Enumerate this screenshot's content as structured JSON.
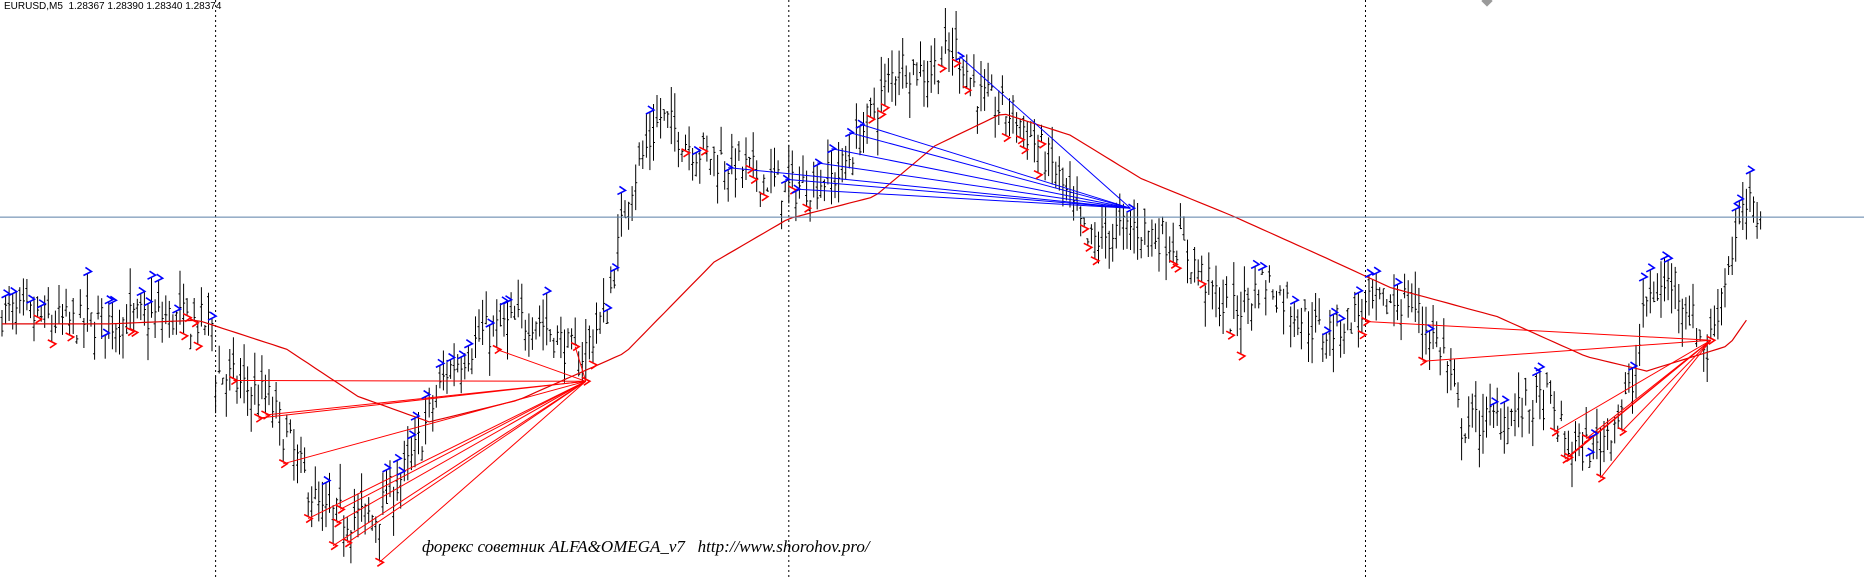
{
  "header": {
    "symbol": "EURUSD,M5",
    "prices": "1.28367 1.28390 1.28340 1.28374"
  },
  "watermark": "форекс советник ALFA&OMEGA_v7   http://www.shorohov.pro/",
  "colors": {
    "bars": "#000000",
    "moving_average": "#e00000",
    "buy": "#0000ff",
    "sell": "#ff0000",
    "price_line": "#5a7fa6",
    "separator": "#000000"
  },
  "chart_data": {
    "type": "ohlc",
    "symbol": "EURUSD",
    "timeframe": "M5",
    "last_bar": {
      "open": 1.28367,
      "high": 1.2839,
      "low": 1.2834,
      "close": 1.28374
    },
    "current_price": 1.28374,
    "bar_count": 520,
    "day_separators_at_bar": [
      60,
      221,
      383
    ],
    "y_range": [
      1.2738,
      1.2895
    ],
    "price_path": [
      [
        0,
        1.2811
      ],
      [
        20,
        1.2808
      ],
      [
        45,
        1.281
      ],
      [
        59,
        1.2808
      ],
      [
        60,
        1.2795
      ],
      [
        75,
        1.2787
      ],
      [
        90,
        1.2755
      ],
      [
        105,
        1.2755
      ],
      [
        115,
        1.277
      ],
      [
        125,
        1.2795
      ],
      [
        135,
        1.2805
      ],
      [
        150,
        1.281
      ],
      [
        162,
        1.2798
      ],
      [
        170,
        1.2812
      ],
      [
        176,
        1.2845
      ],
      [
        185,
        1.2865
      ],
      [
        195,
        1.2856
      ],
      [
        210,
        1.285
      ],
      [
        221,
        1.2845
      ],
      [
        235,
        1.2849
      ],
      [
        244,
        1.2865
      ],
      [
        252,
        1.288
      ],
      [
        260,
        1.2877
      ],
      [
        268,
        1.2884
      ],
      [
        275,
        1.287
      ],
      [
        285,
        1.2865
      ],
      [
        296,
        1.285
      ],
      [
        305,
        1.283
      ],
      [
        318,
        1.2835
      ],
      [
        331,
        1.283
      ],
      [
        345,
        1.281
      ],
      [
        355,
        1.282
      ],
      [
        365,
        1.281
      ],
      [
        371,
        1.2805
      ],
      [
        383,
        1.2812
      ],
      [
        395,
        1.2815
      ],
      [
        405,
        1.28
      ],
      [
        410,
        1.278
      ],
      [
        420,
        1.2782
      ],
      [
        434,
        1.2787
      ],
      [
        440,
        1.2774
      ],
      [
        448,
        1.2774
      ],
      [
        458,
        1.279
      ],
      [
        462,
        1.2815
      ],
      [
        470,
        1.282
      ],
      [
        479,
        1.28
      ],
      [
        485,
        1.2825
      ],
      [
        490,
        1.284
      ],
      [
        494,
        1.2837
      ]
    ],
    "moving_average_path": [
      [
        0,
        1.2808
      ],
      [
        30,
        1.2808
      ],
      [
        55,
        1.2809
      ],
      [
        80,
        1.2801
      ],
      [
        100,
        1.2788
      ],
      [
        120,
        1.2781
      ],
      [
        145,
        1.2787
      ],
      [
        175,
        1.28
      ],
      [
        200,
        1.2825
      ],
      [
        221,
        1.2837
      ],
      [
        245,
        1.2843
      ],
      [
        262,
        1.2857
      ],
      [
        281,
        1.2866
      ],
      [
        300,
        1.286
      ],
      [
        320,
        1.2848
      ],
      [
        345,
        1.2838
      ],
      [
        370,
        1.2827
      ],
      [
        390,
        1.2818
      ],
      [
        420,
        1.281
      ],
      [
        445,
        1.2799
      ],
      [
        462,
        1.2795
      ],
      [
        485,
        1.2802
      ],
      [
        490,
        1.2809
      ]
    ],
    "series": [
      {
        "name": "",
        "kind": "bars"
      },
      {
        "name": "",
        "kind": "moving_average"
      }
    ],
    "grid": false,
    "legend": false
  }
}
